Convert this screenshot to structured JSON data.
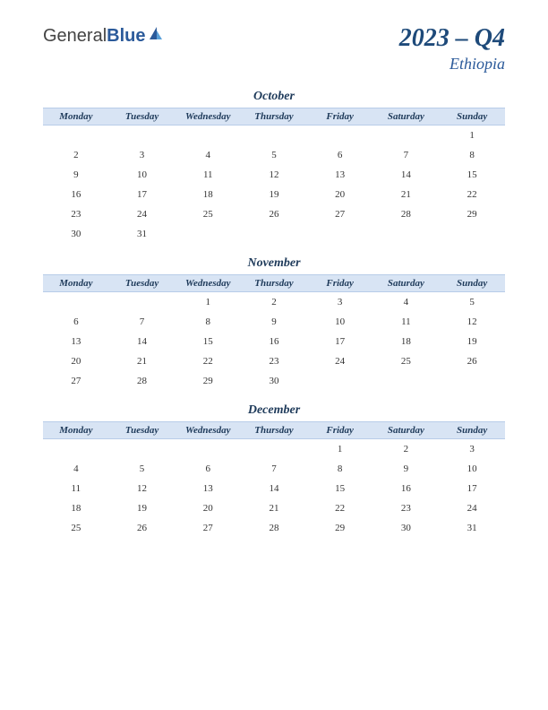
{
  "logo": {
    "part1": "General",
    "part2": "Blue"
  },
  "title": "2023 – Q4",
  "subtitle": "Ethiopia",
  "day_headers": [
    "Monday",
    "Tuesday",
    "Wednesday",
    "Thursday",
    "Friday",
    "Saturday",
    "Sunday"
  ],
  "colors": {
    "header_bg": "#d8e4f4",
    "header_text": "#1e3a5a",
    "title_text": "#1e4a7a",
    "subtitle_text": "#2b5a9a",
    "cell_text": "#333333",
    "page_bg": "#ffffff"
  },
  "fonts": {
    "title_size": 28,
    "subtitle_size": 18,
    "month_title_size": 14,
    "header_size": 11,
    "cell_size": 11
  },
  "months": [
    {
      "name": "October",
      "weeks": [
        [
          "",
          "",
          "",
          "",
          "",
          "",
          "1"
        ],
        [
          "2",
          "3",
          "4",
          "5",
          "6",
          "7",
          "8"
        ],
        [
          "9",
          "10",
          "11",
          "12",
          "13",
          "14",
          "15"
        ],
        [
          "16",
          "17",
          "18",
          "19",
          "20",
          "21",
          "22"
        ],
        [
          "23",
          "24",
          "25",
          "26",
          "27",
          "28",
          "29"
        ],
        [
          "30",
          "31",
          "",
          "",
          "",
          "",
          ""
        ]
      ]
    },
    {
      "name": "November",
      "weeks": [
        [
          "",
          "",
          "1",
          "2",
          "3",
          "4",
          "5"
        ],
        [
          "6",
          "7",
          "8",
          "9",
          "10",
          "11",
          "12"
        ],
        [
          "13",
          "14",
          "15",
          "16",
          "17",
          "18",
          "19"
        ],
        [
          "20",
          "21",
          "22",
          "23",
          "24",
          "25",
          "26"
        ],
        [
          "27",
          "28",
          "29",
          "30",
          "",
          "",
          ""
        ]
      ]
    },
    {
      "name": "December",
      "weeks": [
        [
          "",
          "",
          "",
          "",
          "1",
          "2",
          "3"
        ],
        [
          "4",
          "5",
          "6",
          "7",
          "8",
          "9",
          "10"
        ],
        [
          "11",
          "12",
          "13",
          "14",
          "15",
          "16",
          "17"
        ],
        [
          "18",
          "19",
          "20",
          "21",
          "22",
          "23",
          "24"
        ],
        [
          "25",
          "26",
          "27",
          "28",
          "29",
          "30",
          "31"
        ]
      ]
    }
  ]
}
